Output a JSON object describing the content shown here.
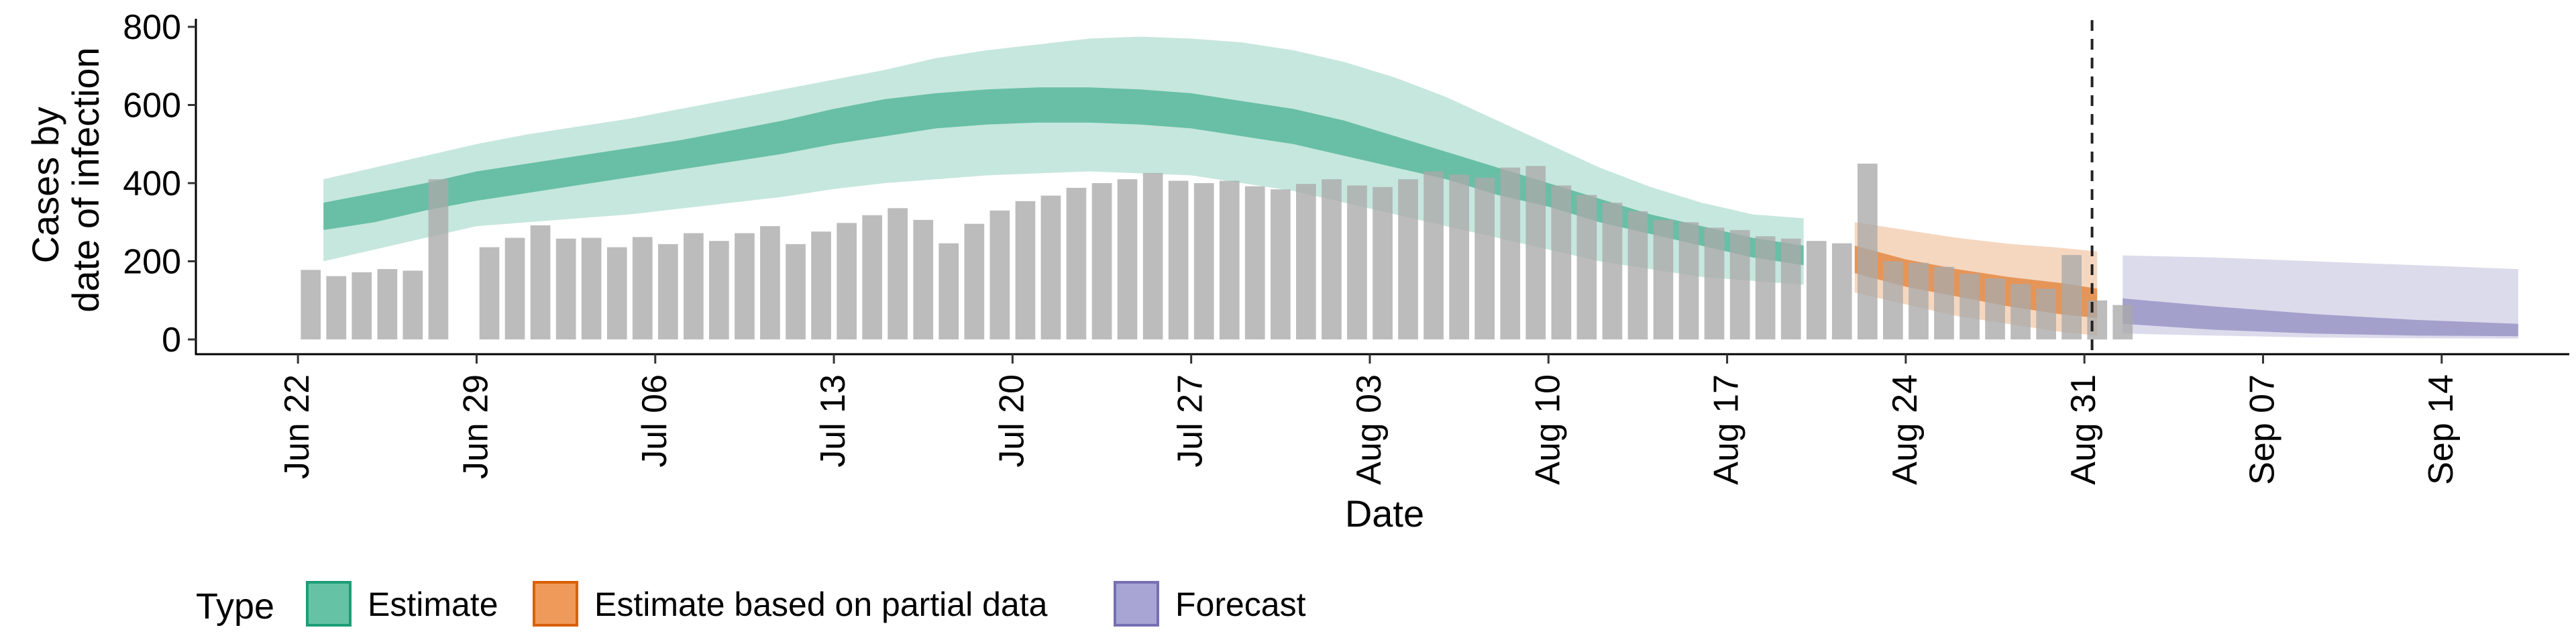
{
  "chart_data": {
    "type": "bar+ribbon",
    "title": "",
    "xlabel": "Date",
    "ylabel": [
      "Cases by",
      "date of infection"
    ],
    "ylim": [
      0,
      820
    ],
    "y_ticks": [
      0,
      200,
      400,
      600,
      800
    ],
    "x_ticks": [
      {
        "label": "Jun 22",
        "day": 0
      },
      {
        "label": "Jun 29",
        "day": 7
      },
      {
        "label": "Jul 06",
        "day": 14
      },
      {
        "label": "Jul 13",
        "day": 21
      },
      {
        "label": "Jul 20",
        "day": 28
      },
      {
        "label": "Jul 27",
        "day": 35
      },
      {
        "label": "Aug 03",
        "day": 42
      },
      {
        "label": "Aug 10",
        "day": 49
      },
      {
        "label": "Aug 17",
        "day": 56
      },
      {
        "label": "Aug 24",
        "day": 63
      },
      {
        "label": "Aug 31",
        "day": 70
      },
      {
        "label": "Sep 07",
        "day": 77
      },
      {
        "label": "Sep 14",
        "day": 84
      }
    ],
    "x_range_days": [
      -4,
      89
    ],
    "vline_day": 70.3,
    "reported_cases": {
      "start_day": 0.5,
      "values": [
        178,
        162,
        172,
        180,
        176,
        410,
        null,
        236,
        260,
        292,
        258,
        260,
        236,
        262,
        244,
        272,
        252,
        272,
        290,
        244,
        276,
        298,
        318,
        336,
        306,
        246,
        296,
        330,
        354,
        368,
        388,
        400,
        410,
        426,
        406,
        400,
        406,
        392,
        384,
        398,
        410,
        394,
        390,
        410,
        430,
        422,
        414,
        440,
        444,
        394,
        370,
        350,
        328,
        306,
        300,
        286,
        280,
        264,
        258,
        252,
        246,
        450,
        200,
        196,
        186,
        168,
        156,
        142,
        130,
        216,
        100,
        88
      ]
    },
    "legend": {
      "title": "Type",
      "items": [
        {
          "label": "Estimate",
          "fill": "#66c2a5",
          "stroke": "#1b9e77"
        },
        {
          "label": "Estimate based on partial data",
          "fill": "#ef9a5a",
          "stroke": "#d95f02"
        },
        {
          "label": "Forecast",
          "fill": "#a8a4d4",
          "stroke": "#7570b3"
        }
      ]
    },
    "series": [
      {
        "name": "Estimate",
        "color": "#1b9e77",
        "days": [
          1,
          3,
          5,
          7,
          9,
          11,
          13,
          15,
          17,
          19,
          21,
          23,
          25,
          27,
          29,
          31,
          33,
          35,
          37,
          39,
          41,
          43,
          45,
          47,
          49,
          51,
          53,
          55,
          57,
          59
        ],
        "upper90": [
          410,
          440,
          470,
          500,
          525,
          545,
          565,
          590,
          615,
          640,
          665,
          690,
          720,
          740,
          755,
          770,
          775,
          770,
          760,
          740,
          710,
          670,
          620,
          560,
          500,
          440,
          390,
          350,
          320,
          310
        ],
        "lower90": [
          200,
          230,
          260,
          290,
          300,
          310,
          320,
          335,
          350,
          365,
          385,
          400,
          410,
          420,
          425,
          430,
          425,
          420,
          400,
          380,
          350,
          320,
          290,
          260,
          230,
          200,
          180,
          160,
          150,
          140
        ],
        "upper50": [
          350,
          375,
          400,
          430,
          450,
          470,
          490,
          510,
          535,
          560,
          590,
          615,
          630,
          640,
          645,
          645,
          640,
          630,
          610,
          590,
          560,
          520,
          480,
          440,
          400,
          360,
          320,
          290,
          260,
          240
        ],
        "lower50": [
          280,
          300,
          330,
          355,
          375,
          395,
          415,
          435,
          455,
          475,
          500,
          520,
          540,
          550,
          555,
          555,
          550,
          540,
          520,
          500,
          470,
          440,
          410,
          370,
          340,
          300,
          270,
          240,
          210,
          190
        ]
      },
      {
        "name": "Estimate based on partial data",
        "color": "#d95f02",
        "days": [
          61,
          63,
          65,
          67,
          69,
          70.5
        ],
        "upper90": [
          300,
          280,
          260,
          245,
          235,
          225
        ],
        "lower90": [
          120,
          90,
          60,
          40,
          20,
          10
        ],
        "upper50": [
          240,
          205,
          180,
          160,
          145,
          130
        ],
        "lower50": [
          170,
          135,
          110,
          85,
          65,
          55
        ]
      },
      {
        "name": "Forecast",
        "color": "#7570b3",
        "days": [
          71.5,
          75,
          79,
          83,
          87
        ],
        "upper90": [
          215,
          210,
          200,
          190,
          180
        ],
        "lower90": [
          15,
          10,
          5,
          3,
          2
        ],
        "upper50": [
          105,
          85,
          65,
          50,
          40
        ],
        "lower50": [
          40,
          25,
          15,
          10,
          8
        ]
      }
    ]
  }
}
